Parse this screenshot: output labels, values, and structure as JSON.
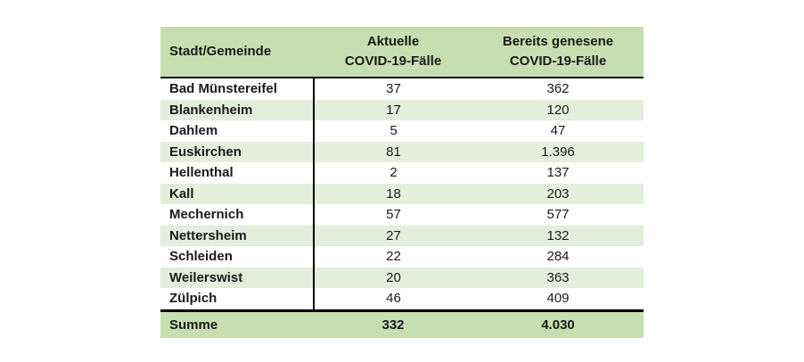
{
  "header": {
    "col1": "Stadt/Gemeinde",
    "col2": [
      "Aktuelle",
      "COVID-19-Fälle"
    ],
    "col3": [
      "Bereits genesene",
      "COVID-19-Fälle"
    ]
  },
  "rows": [
    {
      "name": "Bad Münstereifel",
      "current": "37",
      "recovered": "362"
    },
    {
      "name": "Blankenheim",
      "current": "17",
      "recovered": "120"
    },
    {
      "name": "Dahlem",
      "current": "5",
      "recovered": "47"
    },
    {
      "name": "Euskirchen",
      "current": "81",
      "recovered": "1.396"
    },
    {
      "name": "Hellenthal",
      "current": "2",
      "recovered": "137"
    },
    {
      "name": "Kall",
      "current": "18",
      "recovered": "203"
    },
    {
      "name": "Mechernich",
      "current": "57",
      "recovered": "577"
    },
    {
      "name": "Nettersheim",
      "current": "27",
      "recovered": "132"
    },
    {
      "name": "Schleiden",
      "current": "22",
      "recovered": "284"
    },
    {
      "name": "Weilerswist",
      "current": "20",
      "recovered": "363"
    },
    {
      "name": "Zülpich",
      "current": "46",
      "recovered": "409"
    }
  ],
  "total": {
    "label": "Summe",
    "current": "332",
    "recovered": "4.030"
  },
  "colors": {
    "header_bg": "#c6dfb0",
    "stripe_bg": "#e3eedb"
  }
}
